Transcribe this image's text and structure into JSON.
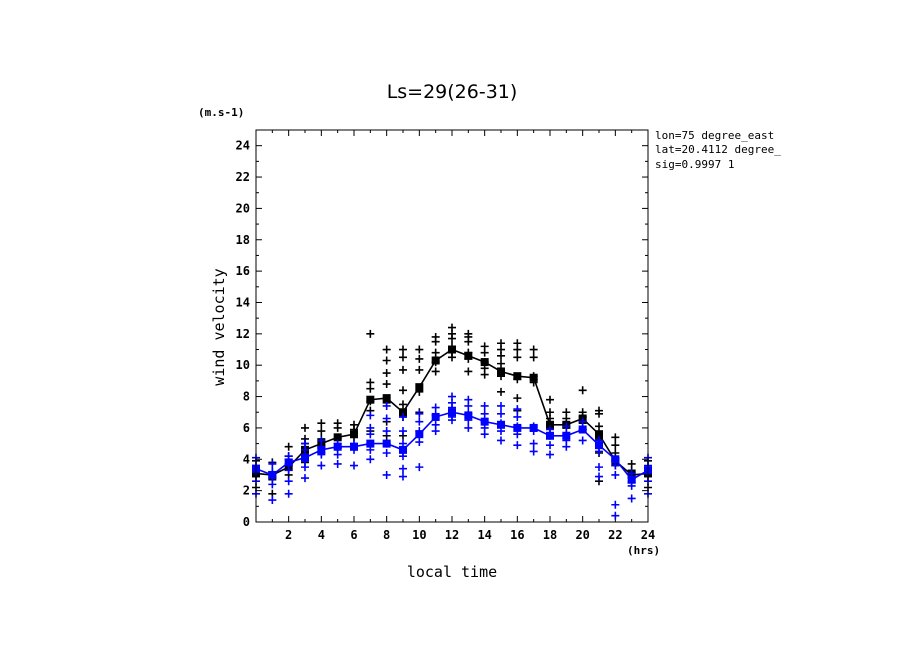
{
  "chart_data": {
    "type": "line",
    "title": "Ls=29(26-31)",
    "xlabel": "local time",
    "ylabel": "wind velocity",
    "x_unit": "(hrs)",
    "y_unit": "(m.s-1)",
    "xlim": [
      0,
      24
    ],
    "ylim": [
      0,
      25
    ],
    "x_ticks": [
      "2",
      "4",
      "6",
      "8",
      "10",
      "12",
      "14",
      "16",
      "18",
      "20",
      "22",
      "24"
    ],
    "y_ticks": [
      "0",
      "2",
      "4",
      "6",
      "8",
      "10",
      "12",
      "14",
      "16",
      "18",
      "20",
      "22",
      "24"
    ],
    "annotations": [
      "lon=75 degree_east",
      "lat=20.4112 degree_",
      "sig=0.9997 1"
    ],
    "grid": false,
    "x": [
      0,
      1,
      2,
      3,
      4,
      5,
      6,
      7,
      8,
      9,
      10,
      11,
      12,
      13,
      14,
      15,
      16,
      17,
      18,
      19,
      20,
      21,
      22,
      23,
      24
    ],
    "series": [
      {
        "color": "#000000",
        "mean": [
          3.1,
          3.0,
          3.5,
          4.6,
          5.0,
          5.4,
          5.6,
          7.8,
          7.9,
          7.0,
          8.6,
          10.3,
          11.0,
          10.6,
          10.2,
          9.6,
          9.3,
          9.2,
          6.2,
          6.2,
          6.6,
          5.6,
          3.9,
          3.0,
          3.1
        ],
        "points": [
          [
            0,
            [
              2.2,
              2.9,
              3.4,
              3.9
            ]
          ],
          [
            1,
            [
              1.8,
              2.7,
              3.2,
              3.8
            ]
          ],
          [
            2,
            [
              3.0,
              3.6,
              4.0,
              4.2,
              4.8
            ]
          ],
          [
            3,
            [
              3.8,
              4.5,
              5.0,
              5.3,
              6.0
            ]
          ],
          [
            4,
            [
              4.4,
              4.9,
              5.3,
              5.8,
              6.3
            ]
          ],
          [
            5,
            [
              4.7,
              5.3,
              6.0,
              6.3
            ]
          ],
          [
            6,
            [
              4.8,
              5.4,
              5.9,
              6.2
            ]
          ],
          [
            7,
            [
              5.8,
              7.1,
              7.7,
              8.5,
              8.9,
              12.0
            ]
          ],
          [
            8,
            [
              5.5,
              6.4,
              7.6,
              8.8,
              9.5,
              10.3,
              11.0
            ]
          ],
          [
            9,
            [
              4.5,
              5.5,
              6.7,
              7.5,
              8.4,
              9.7,
              10.5,
              11.0
            ]
          ],
          [
            10,
            [
              7.0,
              8.3,
              9.7,
              10.4,
              11.0
            ]
          ],
          [
            11,
            [
              9.6,
              10.2,
              10.8,
              11.5,
              11.8
            ]
          ],
          [
            12,
            [
              10.5,
              10.8,
              11.2,
              11.7,
              12.0,
              12.4
            ]
          ],
          [
            13,
            [
              9.6,
              10.4,
              10.8,
              11.5,
              11.8,
              12.0
            ]
          ],
          [
            14,
            [
              9.4,
              9.8,
              10.2,
              10.8,
              11.2
            ]
          ],
          [
            15,
            [
              8.3,
              9.3,
              10.1,
              10.6,
              11.0,
              11.4
            ]
          ],
          [
            16,
            [
              7.1,
              7.9,
              9.1,
              10.5,
              11.0,
              11.4
            ]
          ],
          [
            17,
            [
              8.9,
              9.1,
              9.3,
              10.5,
              11.0
            ]
          ],
          [
            18,
            [
              6.0,
              6.6,
              7.0,
              7.8
            ]
          ],
          [
            19,
            [
              6.0,
              6.3,
              6.6,
              7.0
            ]
          ],
          [
            20,
            [
              5.9,
              6.3,
              6.7,
              7.0,
              8.4
            ]
          ],
          [
            21,
            [
              2.6,
              4.4,
              5.3,
              6.1,
              6.9,
              7.1
            ]
          ],
          [
            22,
            [
              3.6,
              3.9,
              4.4,
              4.9,
              5.4
            ]
          ],
          [
            23,
            [
              2.5,
              2.8,
              3.3,
              3.7
            ]
          ],
          [
            24,
            [
              2.2,
              2.9,
              3.4,
              3.9
            ]
          ]
        ]
      },
      {
        "color": "#0000ff",
        "mean": [
          3.4,
          3.0,
          3.8,
          4.1,
          4.6,
          4.8,
          4.8,
          5.0,
          5.0,
          4.6,
          5.6,
          6.7,
          7.0,
          6.8,
          6.4,
          6.2,
          6.0,
          6.0,
          5.5,
          5.5,
          5.9,
          4.9,
          4.0,
          2.7,
          3.3
        ],
        "points": [
          [
            0,
            [
              1.8,
              2.6,
              3.2,
              3.6,
              4.1
            ]
          ],
          [
            1,
            [
              1.4,
              2.4,
              2.8,
              3.2,
              3.7
            ]
          ],
          [
            2,
            [
              1.8,
              2.6,
              3.3,
              3.7,
              4.2
            ]
          ],
          [
            3,
            [
              2.8,
              3.5,
              4.0,
              4.6,
              5.0
            ]
          ],
          [
            4,
            [
              3.6,
              4.3,
              4.7,
              5.2
            ]
          ],
          [
            5,
            [
              3.7,
              4.3,
              4.7,
              5.0
            ]
          ],
          [
            6,
            [
              3.6,
              4.6,
              4.8,
              5.0
            ]
          ],
          [
            7,
            [
              4.0,
              4.6,
              5.0,
              5.6,
              6.0,
              6.8
            ]
          ],
          [
            8,
            [
              3.0,
              4.4,
              5.0,
              5.8,
              6.6,
              7.4
            ]
          ],
          [
            9,
            [
              2.9,
              3.4,
              4.2,
              5.0,
              5.8,
              6.7
            ]
          ],
          [
            10,
            [
              3.5,
              5.1,
              5.8,
              6.4,
              6.9
            ]
          ],
          [
            11,
            [
              5.8,
              6.2,
              6.8,
              7.3
            ]
          ],
          [
            12,
            [
              6.5,
              6.7,
              7.0,
              7.3,
              7.6,
              8.0
            ]
          ],
          [
            13,
            [
              6.0,
              6.5,
              6.9,
              7.4,
              7.8
            ]
          ],
          [
            14,
            [
              5.6,
              6.0,
              6.4,
              6.9,
              7.4
            ]
          ],
          [
            15,
            [
              5.2,
              5.8,
              6.3,
              6.9,
              7.4
            ]
          ],
          [
            16,
            [
              4.9,
              5.6,
              6.1,
              6.7,
              7.2
            ]
          ],
          [
            17,
            [
              4.5,
              5.0,
              5.8,
              6.1
            ]
          ],
          [
            18,
            [
              4.3,
              4.9,
              5.5,
              5.9
            ]
          ],
          [
            19,
            [
              4.8,
              5.2,
              5.6,
              6.1
            ]
          ],
          [
            20,
            [
              5.2,
              5.9,
              6.4
            ]
          ],
          [
            21,
            [
              2.9,
              3.5,
              4.5,
              5.2
            ]
          ],
          [
            22,
            [
              0.4,
              1.1,
              3.0,
              3.6,
              4.0
            ]
          ],
          [
            23,
            [
              1.5,
              2.3,
              2.6,
              3.1
            ]
          ],
          [
            24,
            [
              1.8,
              2.6,
              3.2,
              3.6,
              4.1
            ]
          ]
        ]
      }
    ]
  }
}
